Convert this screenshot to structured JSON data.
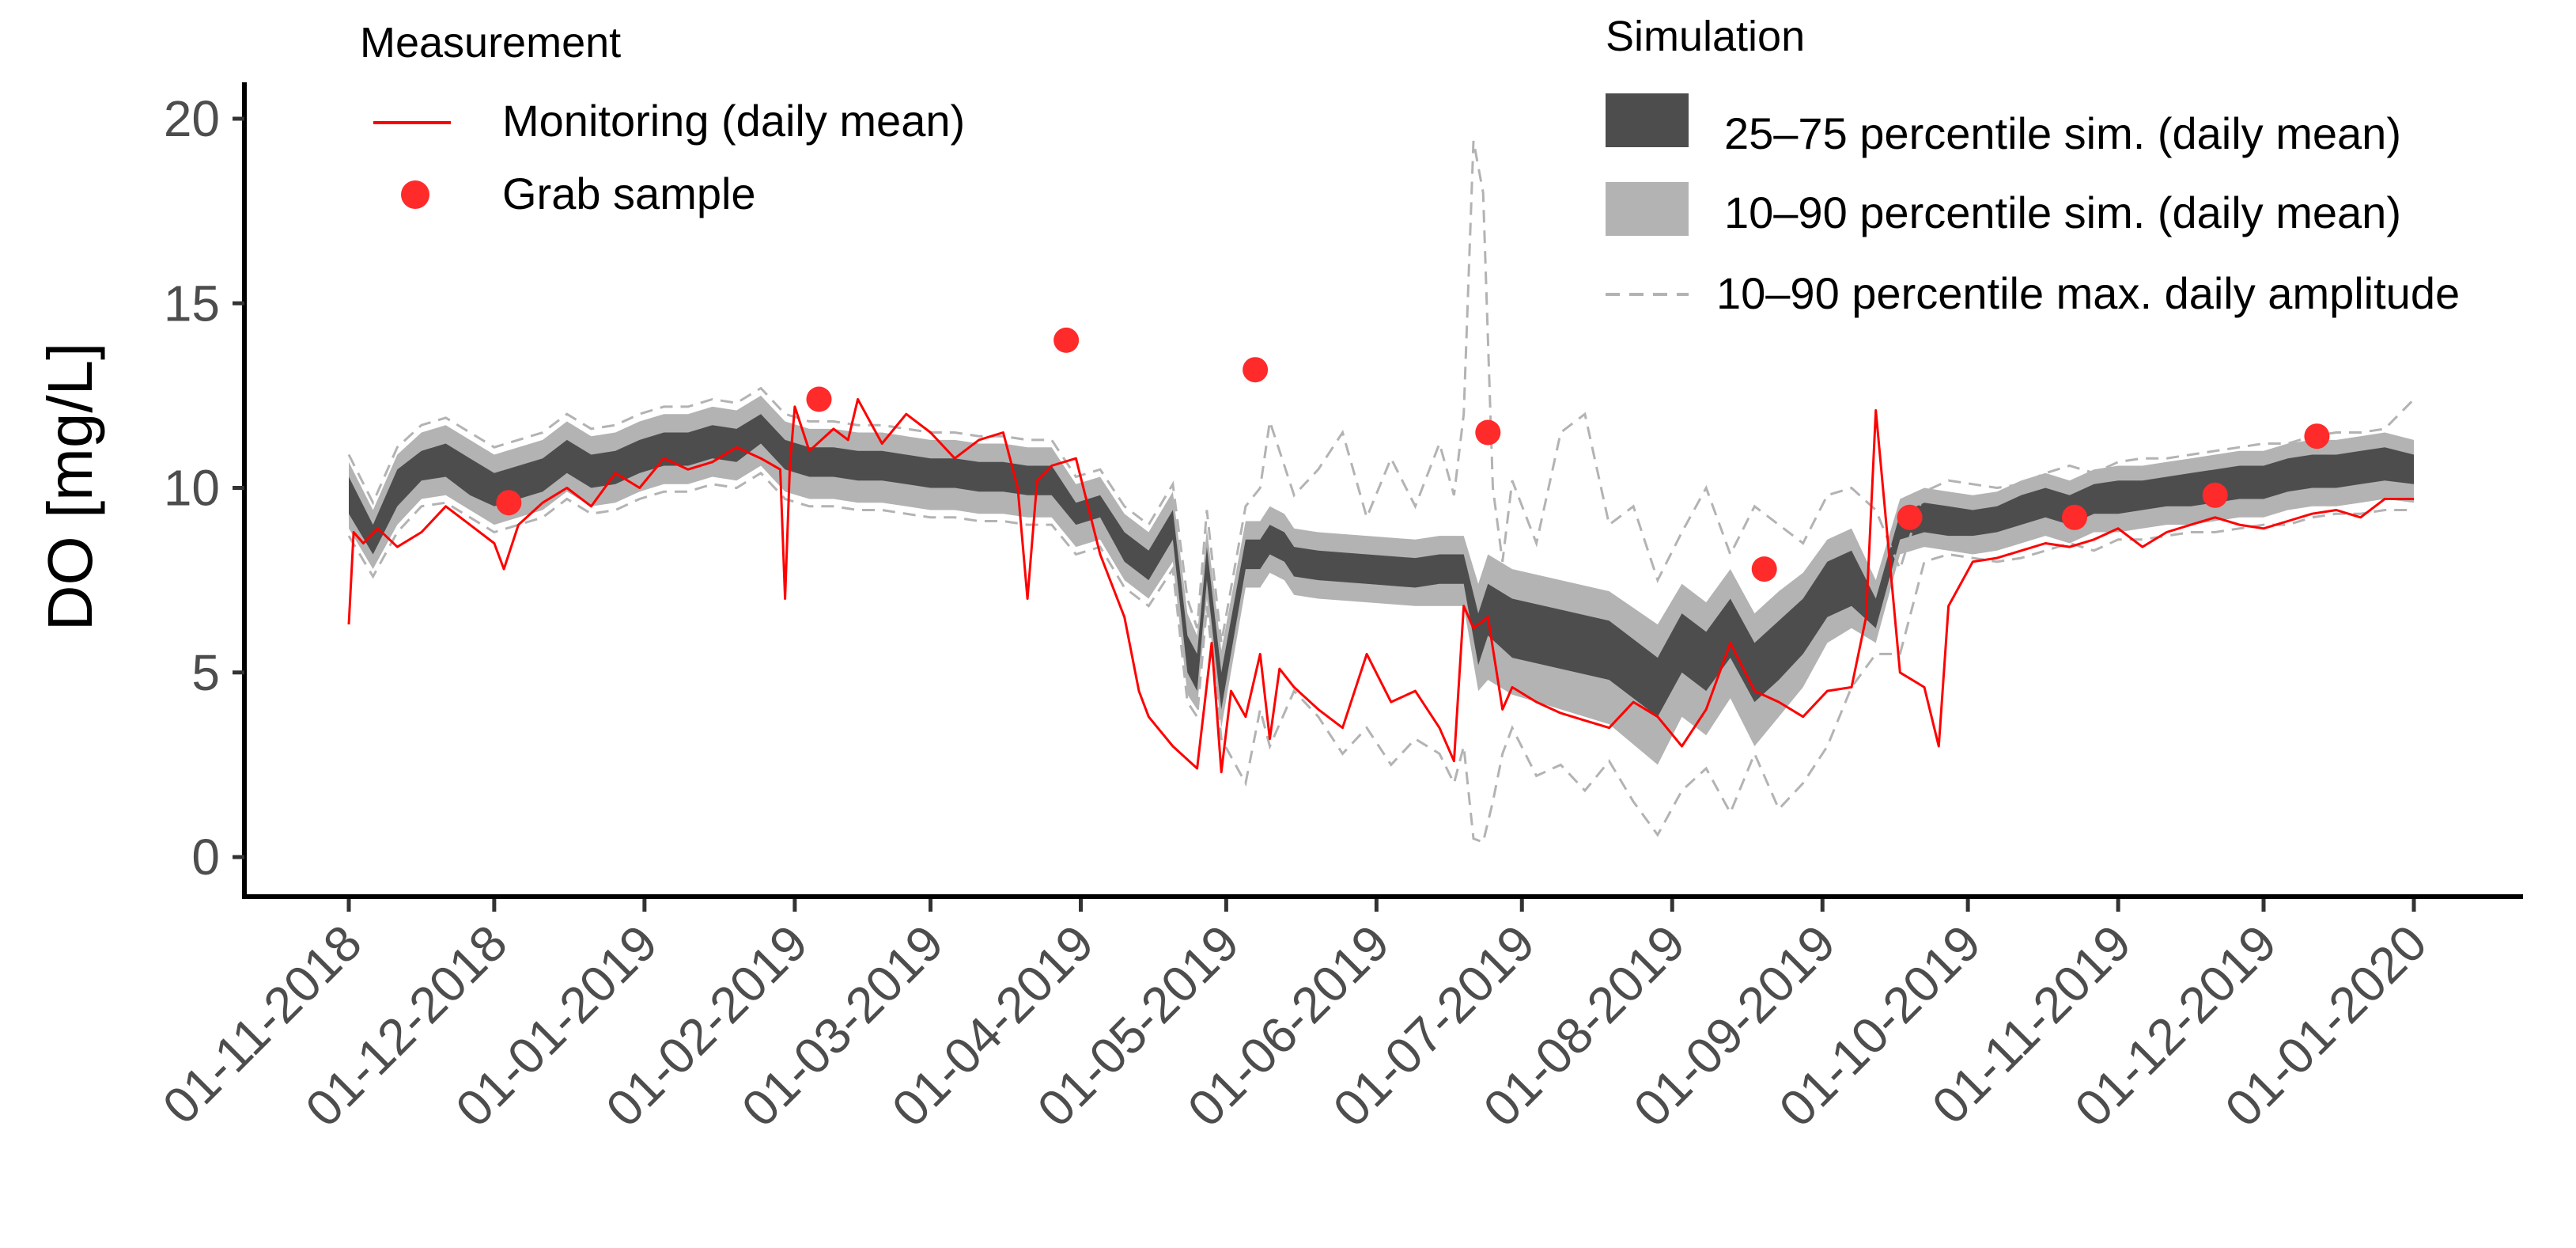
{
  "chart_data": {
    "type": "line",
    "title": "",
    "xlabel": "",
    "ylabel": "DO [mg/L]",
    "ylim": [
      0,
      20
    ],
    "yticks": [
      "0",
      "5",
      "10",
      "15",
      "20"
    ],
    "xdays": [
      0,
      30,
      61,
      92,
      120,
      151,
      181,
      212,
      242,
      273,
      304,
      334,
      365,
      395,
      426
    ],
    "xticks": [
      "01-11-2018",
      "01-12-2018",
      "01-01-2019",
      "01-02-2019",
      "01-03-2019",
      "01-04-2019",
      "01-05-2019",
      "01-06-2019",
      "01-07-2019",
      "01-08-2019",
      "01-09-2019",
      "01-10-2019",
      "01-11-2019",
      "01-12-2019",
      "01-01-2020"
    ],
    "colors": {
      "monitoring": "#ff0000",
      "grab": "#ff2a2a",
      "band_25_75": "#4d4d4d",
      "band_10_90": "#b3b3b3",
      "amplitude": "#b3b3b3",
      "axis": "#000000"
    },
    "legend_measurement": {
      "title": "Measurement",
      "monitoring": "Monitoring (daily mean)",
      "grab": "Grab sample"
    },
    "legend_simulation": {
      "title": "Simulation",
      "band_25_75": "25–75 percentile sim. (daily mean)",
      "band_10_90": "10–90 percentile sim. (daily mean)",
      "amplitude": "10–90 percentile max. daily amplitude"
    },
    "series": [
      {
        "name": "Monitoring (daily mean)",
        "x": [
          0,
          1,
          3,
          6,
          10,
          15,
          20,
          25,
          30,
          32,
          35,
          40,
          45,
          50,
          55,
          60,
          65,
          70,
          75,
          80,
          85,
          89,
          90,
          91,
          92,
          95,
          100,
          103,
          105,
          110,
          115,
          120,
          125,
          130,
          135,
          138,
          140,
          142,
          145,
          150,
          155,
          160,
          163,
          165,
          170,
          175,
          178,
          180,
          182,
          185,
          188,
          190,
          192,
          195,
          200,
          205,
          210,
          215,
          220,
          225,
          228,
          230,
          232,
          235,
          238,
          240,
          245,
          250,
          255,
          260,
          265,
          270,
          275,
          280,
          285,
          290,
          295,
          300,
          305,
          310,
          313,
          315,
          320,
          325,
          328,
          330,
          335,
          340,
          345,
          350,
          355,
          360,
          365,
          370,
          375,
          380,
          385,
          390,
          395,
          400,
          405,
          410,
          415,
          420,
          426
        ],
        "y": [
          6.3,
          8.8,
          8.5,
          8.9,
          8.4,
          8.8,
          9.5,
          9.0,
          8.5,
          7.8,
          9.0,
          9.6,
          10.0,
          9.5,
          10.4,
          10.0,
          10.8,
          10.5,
          10.7,
          11.1,
          10.8,
          10.5,
          7.0,
          10.6,
          12.2,
          11.0,
          11.6,
          11.3,
          12.4,
          11.2,
          12.0,
          11.5,
          10.8,
          11.3,
          11.5,
          10.0,
          7.0,
          10.2,
          10.6,
          10.8,
          8.2,
          6.5,
          4.5,
          3.8,
          3.0,
          2.4,
          5.8,
          2.3,
          4.5,
          3.8,
          5.5,
          3.2,
          5.1,
          4.6,
          4.0,
          3.5,
          5.5,
          4.2,
          4.5,
          3.5,
          2.6,
          6.8,
          6.2,
          6.5,
          4.0,
          4.6,
          4.2,
          3.9,
          3.7,
          3.5,
          4.2,
          3.8,
          3.0,
          4.0,
          5.8,
          4.5,
          4.2,
          3.8,
          4.5,
          4.6,
          6.5,
          12.1,
          5.0,
          4.6,
          3.0,
          6.8,
          8.0,
          8.1,
          8.3,
          8.5,
          8.4,
          8.6,
          8.9,
          8.4,
          8.8,
          9.0,
          9.2,
          9.0,
          8.9,
          9.1,
          9.3,
          9.4,
          9.2,
          9.7,
          9.7
        ]
      },
      {
        "name": "Grab sample",
        "x": [
          33,
          97,
          148,
          187,
          235,
          292,
          322,
          356,
          385,
          406
        ],
        "y": [
          9.6,
          12.4,
          14.0,
          13.2,
          11.5,
          7.8,
          9.2,
          9.2,
          9.8,
          11.4
        ]
      },
      {
        "name": "25–75 percentile sim. (daily mean)",
        "x": [
          0,
          5,
          10,
          15,
          20,
          25,
          30,
          40,
          45,
          50,
          55,
          60,
          65,
          70,
          75,
          80,
          85,
          90,
          95,
          100,
          105,
          110,
          115,
          120,
          125,
          130,
          135,
          140,
          145,
          150,
          155,
          160,
          165,
          170,
          173,
          175,
          177,
          180,
          185,
          188,
          190,
          193,
          195,
          200,
          210,
          220,
          225,
          230,
          233,
          235,
          240,
          250,
          260,
          270,
          275,
          280,
          285,
          290,
          295,
          300,
          305,
          310,
          315,
          320,
          325,
          330,
          335,
          340,
          345,
          350,
          355,
          360,
          365,
          370,
          375,
          380,
          385,
          390,
          395,
          400,
          405,
          410,
          415,
          420,
          426
        ],
        "lower": [
          9.3,
          8.2,
          9.5,
          10.2,
          10.3,
          9.8,
          9.5,
          9.9,
          10.4,
          10.0,
          10.1,
          10.4,
          10.6,
          10.6,
          10.8,
          10.7,
          11.2,
          10.5,
          10.3,
          10.3,
          10.2,
          10.2,
          10.1,
          10.0,
          10.0,
          9.9,
          9.9,
          9.8,
          9.8,
          9.0,
          9.2,
          8.0,
          7.5,
          8.6,
          5.0,
          4.5,
          7.5,
          4.0,
          7.8,
          7.8,
          8.2,
          8.0,
          7.6,
          7.5,
          7.4,
          7.3,
          7.4,
          7.4,
          5.2,
          6.0,
          5.4,
          5.1,
          4.8,
          3.8,
          5.0,
          4.5,
          5.4,
          4.2,
          4.8,
          5.5,
          6.5,
          6.8,
          6.2,
          8.6,
          8.8,
          8.7,
          8.7,
          8.8,
          9.0,
          9.2,
          9.0,
          9.3,
          9.3,
          9.4,
          9.5,
          9.5,
          9.6,
          9.7,
          9.7,
          9.9,
          10.0,
          10.0,
          10.1,
          10.2,
          10.1
        ],
        "upper": [
          10.3,
          9.0,
          10.5,
          11.0,
          11.2,
          10.8,
          10.4,
          10.8,
          11.3,
          10.9,
          11.0,
          11.3,
          11.5,
          11.5,
          11.7,
          11.6,
          12.0,
          11.3,
          11.1,
          11.1,
          11.0,
          11.0,
          10.9,
          10.8,
          10.8,
          10.7,
          10.7,
          10.6,
          10.6,
          9.6,
          9.8,
          8.8,
          8.3,
          9.4,
          6.0,
          5.5,
          8.4,
          5.0,
          8.6,
          8.6,
          9.0,
          8.8,
          8.4,
          8.3,
          8.2,
          8.1,
          8.2,
          8.2,
          6.6,
          7.4,
          7.0,
          6.7,
          6.4,
          5.4,
          6.6,
          6.1,
          7.0,
          5.8,
          6.4,
          7.0,
          8.0,
          8.3,
          7.0,
          9.3,
          9.6,
          9.5,
          9.4,
          9.5,
          9.8,
          10.0,
          9.8,
          10.1,
          10.2,
          10.2,
          10.3,
          10.4,
          10.5,
          10.6,
          10.6,
          10.8,
          10.9,
          10.9,
          11.0,
          11.1,
          10.9
        ]
      },
      {
        "name": "10–90 percentile sim. (daily mean)",
        "x": [
          0,
          5,
          10,
          15,
          20,
          25,
          30,
          40,
          45,
          50,
          55,
          60,
          65,
          70,
          75,
          80,
          85,
          90,
          95,
          100,
          105,
          110,
          115,
          120,
          125,
          130,
          135,
          140,
          145,
          150,
          155,
          160,
          165,
          170,
          173,
          175,
          177,
          180,
          185,
          188,
          190,
          193,
          195,
          200,
          210,
          220,
          225,
          230,
          233,
          235,
          240,
          250,
          260,
          270,
          275,
          280,
          285,
          290,
          295,
          300,
          305,
          310,
          315,
          320,
          325,
          330,
          335,
          340,
          345,
          350,
          355,
          360,
          365,
          370,
          375,
          380,
          385,
          390,
          395,
          400,
          405,
          410,
          415,
          420,
          426
        ],
        "lower": [
          8.9,
          7.8,
          9.0,
          9.7,
          9.8,
          9.4,
          9.0,
          9.4,
          9.9,
          9.5,
          9.6,
          9.9,
          10.1,
          10.1,
          10.3,
          10.2,
          10.6,
          9.9,
          9.7,
          9.7,
          9.6,
          9.6,
          9.5,
          9.4,
          9.4,
          9.3,
          9.3,
          9.2,
          9.2,
          8.4,
          8.6,
          7.5,
          7.0,
          8.0,
          4.4,
          4.0,
          7.0,
          3.5,
          7.3,
          7.3,
          7.7,
          7.5,
          7.1,
          7.0,
          6.9,
          6.8,
          6.8,
          6.8,
          4.5,
          4.8,
          4.4,
          4.0,
          3.6,
          2.5,
          3.8,
          3.3,
          4.3,
          3.0,
          3.8,
          4.6,
          5.8,
          6.2,
          5.8,
          8.2,
          8.4,
          8.3,
          8.2,
          8.3,
          8.5,
          8.7,
          8.5,
          8.8,
          8.8,
          8.9,
          9.0,
          9.0,
          9.1,
          9.2,
          9.2,
          9.4,
          9.5,
          9.5,
          9.6,
          9.7,
          9.6
        ],
        "upper": [
          10.7,
          9.4,
          10.9,
          11.5,
          11.7,
          11.3,
          10.9,
          11.3,
          11.8,
          11.4,
          11.5,
          11.8,
          12.0,
          12.0,
          12.2,
          12.1,
          12.5,
          11.8,
          11.6,
          11.6,
          11.5,
          11.5,
          11.4,
          11.3,
          11.3,
          11.2,
          11.2,
          11.1,
          11.1,
          10.1,
          10.3,
          9.3,
          8.8,
          9.9,
          6.6,
          6.0,
          8.9,
          5.6,
          9.1,
          9.1,
          9.5,
          9.3,
          8.9,
          8.8,
          8.7,
          8.6,
          8.7,
          8.7,
          7.4,
          8.2,
          7.8,
          7.5,
          7.2,
          6.3,
          7.4,
          6.9,
          7.8,
          6.6,
          7.2,
          7.7,
          8.6,
          8.9,
          7.5,
          9.7,
          10.0,
          9.9,
          9.8,
          9.9,
          10.2,
          10.4,
          10.2,
          10.5,
          10.6,
          10.6,
          10.7,
          10.8,
          10.9,
          11.0,
          11.0,
          11.2,
          11.3,
          11.3,
          11.4,
          11.5,
          11.3
        ]
      },
      {
        "name": "10–90 percentile max. daily amplitude",
        "x": [
          0,
          5,
          10,
          15,
          20,
          25,
          30,
          40,
          45,
          50,
          55,
          60,
          65,
          70,
          75,
          80,
          85,
          90,
          95,
          100,
          105,
          110,
          115,
          120,
          125,
          130,
          135,
          140,
          145,
          150,
          155,
          160,
          165,
          170,
          173,
          175,
          177,
          180,
          185,
          188,
          190,
          195,
          200,
          205,
          210,
          215,
          220,
          225,
          228,
          230,
          232,
          234,
          236,
          238,
          240,
          245,
          250,
          255,
          260,
          265,
          270,
          275,
          280,
          285,
          290,
          295,
          300,
          305,
          310,
          315,
          320,
          325,
          330,
          335,
          340,
          345,
          350,
          355,
          360,
          365,
          370,
          375,
          380,
          385,
          390,
          395,
          400,
          405,
          410,
          415,
          420,
          426
        ],
        "lower": [
          8.7,
          7.6,
          8.8,
          9.5,
          9.6,
          9.2,
          8.8,
          9.2,
          9.7,
          9.3,
          9.4,
          9.7,
          9.9,
          9.9,
          10.1,
          10.0,
          10.4,
          9.7,
          9.5,
          9.5,
          9.4,
          9.4,
          9.3,
          9.2,
          9.2,
          9.1,
          9.1,
          9.0,
          9.0,
          8.2,
          8.4,
          7.3,
          6.8,
          7.8,
          4.2,
          3.8,
          6.8,
          3.2,
          2.0,
          4.0,
          3.0,
          4.5,
          3.8,
          2.8,
          3.5,
          2.5,
          3.2,
          2.8,
          2.0,
          3.0,
          0.5,
          0.4,
          1.5,
          2.8,
          3.5,
          2.2,
          2.5,
          1.8,
          2.6,
          1.5,
          0.6,
          1.8,
          2.4,
          1.2,
          2.8,
          1.3,
          2.0,
          3.0,
          4.6,
          5.5,
          5.5,
          8.0,
          8.2,
          8.1,
          8.0,
          8.1,
          8.3,
          8.5,
          8.3,
          8.6,
          8.6,
          8.7,
          8.8,
          8.8,
          8.9,
          9.0,
          9.0,
          9.2,
          9.3,
          9.3,
          9.4,
          9.4
        ],
        "upper": [
          10.9,
          9.6,
          11.1,
          11.7,
          11.9,
          11.5,
          11.1,
          11.5,
          12.0,
          11.6,
          11.7,
          12.0,
          12.2,
          12.2,
          12.4,
          12.3,
          12.7,
          12.0,
          11.8,
          11.8,
          11.7,
          11.7,
          11.6,
          11.5,
          11.5,
          11.4,
          11.4,
          11.3,
          11.3,
          10.3,
          10.5,
          9.5,
          9.0,
          10.1,
          7.0,
          6.2,
          9.4,
          5.8,
          9.5,
          10.0,
          11.8,
          9.8,
          10.5,
          11.5,
          9.2,
          10.8,
          9.5,
          11.2,
          9.8,
          12.0,
          19.4,
          18.0,
          10.0,
          8.0,
          10.2,
          8.5,
          11.5,
          12.0,
          9.0,
          9.5,
          7.5,
          8.8,
          10.0,
          8.2,
          9.5,
          9.0,
          8.5,
          9.8,
          10.0,
          9.4,
          7.8,
          9.9,
          10.2,
          10.1,
          10.0,
          10.1,
          10.4,
          10.6,
          10.4,
          10.7,
          10.8,
          10.8,
          10.9,
          11.0,
          11.1,
          11.2,
          11.2,
          11.4,
          11.5,
          11.5,
          11.6,
          12.4
        ]
      }
    ]
  }
}
